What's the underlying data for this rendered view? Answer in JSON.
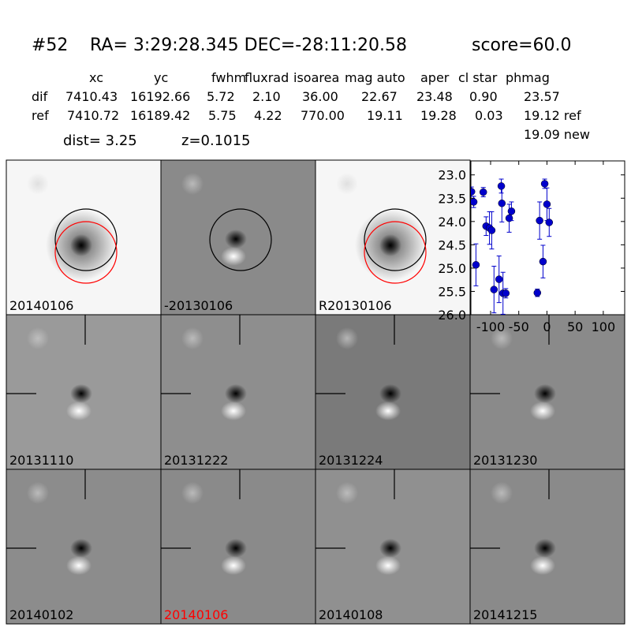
{
  "header": {
    "id": "#52",
    "coords": "RA= 3:29:28.345 DEC=-28:11:20.58",
    "score": "score=60.0"
  },
  "table": {
    "columns": [
      "xc",
      "yc",
      "fwhm",
      "fluxrad",
      "isoarea",
      "mag auto",
      "aper",
      "cl star",
      "phmag"
    ],
    "rows": [
      {
        "label": "dif",
        "values": [
          "7410.43",
          "16192.66",
          "5.72",
          "2.10",
          "36.00",
          "22.67",
          "23.48",
          "0.90",
          "23.57"
        ]
      },
      {
        "label": "ref",
        "values": [
          "7410.72",
          "16189.42",
          "5.75",
          "4.22",
          "770.00",
          "19.11",
          "19.28",
          "0.03",
          "19.12 ref"
        ]
      }
    ],
    "extra": "19.09 new"
  },
  "footer": {
    "dist": "dist=  3.25",
    "z": "z=0.1015"
  },
  "panels": [
    {
      "label": "20140106",
      "color": "#000000"
    },
    {
      "label": "-20130106",
      "color": "#000000"
    },
    {
      "label": "R20130106",
      "color": "#000000"
    },
    {
      "label": "20131110",
      "color": "#000000"
    },
    {
      "label": "20131222",
      "color": "#000000"
    },
    {
      "label": "20131224",
      "color": "#000000"
    },
    {
      "label": "20131230",
      "color": "#000000"
    },
    {
      "label": "20140102",
      "color": "#000000"
    },
    {
      "label": "20140106",
      "color": "#ff0000"
    },
    {
      "label": "20140108",
      "color": "#000000"
    },
    {
      "label": "20141215",
      "color": "#000000"
    }
  ],
  "chart_data": {
    "type": "scatter",
    "color": "#0000cc",
    "x": [
      -134,
      -130,
      -126,
      -113,
      -108,
      -102,
      -98,
      -94,
      -85,
      -81,
      -80,
      -78,
      -73,
      -67,
      -63,
      -17,
      -13,
      -7,
      -4,
      0,
      4
    ],
    "values": [
      23.36,
      23.58,
      24.93,
      23.37,
      24.1,
      24.14,
      24.19,
      25.46,
      25.24,
      23.24,
      23.61,
      25.54,
      25.54,
      23.93,
      23.78,
      25.53,
      23.98,
      24.86,
      23.19,
      23.63,
      24.02
    ],
    "errors": [
      0.1,
      0.12,
      0.45,
      0.1,
      0.2,
      0.35,
      0.4,
      0.5,
      0.5,
      0.15,
      0.4,
      0.45,
      0.1,
      0.3,
      0.2,
      0.08,
      0.4,
      0.35,
      0.1,
      0.35,
      0.3
    ],
    "xlim": [
      -135,
      138
    ],
    "ylim": [
      26.0,
      22.7
    ],
    "xticks": [
      -100,
      -50,
      0,
      50,
      100
    ],
    "yticks": [
      {
        "value": 23,
        "label": "23.0"
      },
      {
        "value": 23.5,
        "label": "23.5"
      },
      {
        "value": 24,
        "label": "24.0"
      },
      {
        "value": 24.5,
        "label": "24.5"
      },
      {
        "value": 25,
        "label": "25.0"
      },
      {
        "value": 25.5,
        "label": "25.5"
      },
      {
        "value": 26,
        "label": "26.0"
      }
    ]
  }
}
